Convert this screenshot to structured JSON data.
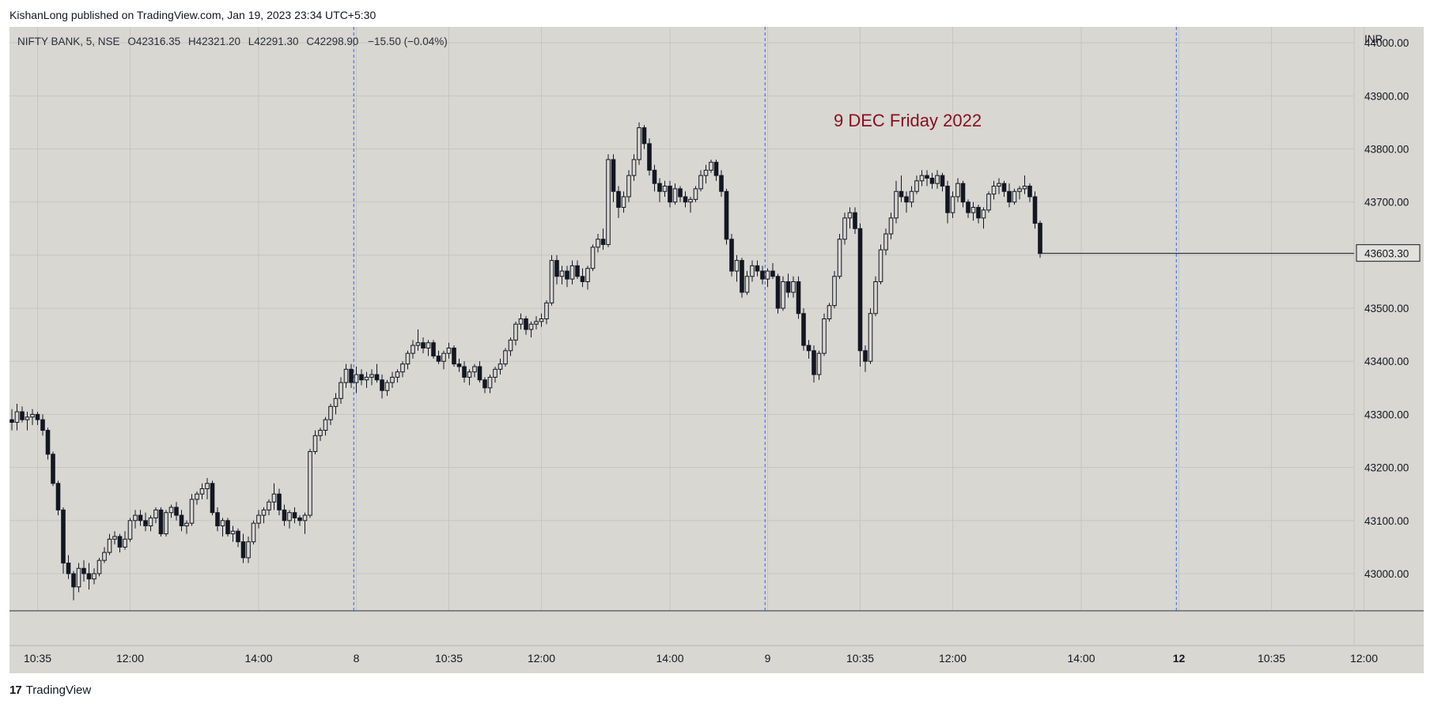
{
  "attribution": "KishanLong published on TradingView.com, Jan 19, 2023 23:34 UTC+5:30",
  "legend": {
    "symbol": "NIFTY BANK, 5, NSE",
    "open_label": "O",
    "open": "42316.35",
    "high_label": "H",
    "high": "42321.20",
    "low_label": "L",
    "low": "42291.30",
    "close_label": "C",
    "close": "42298.90",
    "change": "−15.50 (−0.04%)"
  },
  "currency": "INR",
  "annotation": "9 DEC Friday 2022",
  "footer": {
    "logo_mark": "17",
    "logo_text": "TradingView"
  },
  "colors": {
    "background": "#d8d7d2",
    "candle": "#131722",
    "annotation": "#880e1f",
    "session_line": "#2962ff"
  },
  "chart_data": {
    "type": "candlestick",
    "symbol": "NIFTY BANK",
    "interval": "5",
    "exchange": "NSE",
    "currency": "INR",
    "ylim": [
      42930,
      44030
    ],
    "y_ticks": [
      43000,
      43100,
      43200,
      43300,
      43400,
      43500,
      43600,
      43700,
      43800,
      43900,
      44000
    ],
    "y_tick_labels": [
      "43000.00",
      "43100.00",
      "43200.00",
      "43300.00",
      "43400.00",
      "43500.00",
      "43600.00",
      "43700.00",
      "43800.00",
      "43900.00",
      "44000.00"
    ],
    "last_price_label": "43603.30",
    "last_price": 43603.3,
    "x_ticks": [
      {
        "bar": 5,
        "label": "10:35",
        "bold": false
      },
      {
        "bar": 23,
        "label": "12:00",
        "bold": false
      },
      {
        "bar": 48,
        "label": "14:00",
        "bold": false
      },
      {
        "bar": 67,
        "label": "8",
        "bold": false
      },
      {
        "bar": 85,
        "label": "10:35",
        "bold": false
      },
      {
        "bar": 103,
        "label": "12:00",
        "bold": false
      },
      {
        "bar": 128,
        "label": "14:00",
        "bold": false
      },
      {
        "bar": 147,
        "label": "9",
        "bold": false
      },
      {
        "bar": 165,
        "label": "10:35",
        "bold": false
      },
      {
        "bar": 183,
        "label": "12:00",
        "bold": false
      },
      {
        "bar": 208,
        "label": "14:00",
        "bold": false
      },
      {
        "bar": 227,
        "label": "12",
        "bold": true
      },
      {
        "bar": 245,
        "label": "10:35",
        "bold": false
      },
      {
        "bar": 263,
        "label": "12:00",
        "bold": false
      }
    ],
    "session_breaks": [
      66.5,
      146.5,
      226.5
    ],
    "grid": true,
    "candles": [
      [
        43290,
        43310,
        43270,
        43285
      ],
      [
        43285,
        43320,
        43270,
        43305
      ],
      [
        43305,
        43315,
        43285,
        43290
      ],
      [
        43290,
        43305,
        43270,
        43295
      ],
      [
        43295,
        43310,
        43280,
        43300
      ],
      [
        43300,
        43305,
        43280,
        43290
      ],
      [
        43290,
        43300,
        43260,
        43270
      ],
      [
        43270,
        43275,
        43215,
        43225
      ],
      [
        43225,
        43230,
        43165,
        43170
      ],
      [
        43170,
        43175,
        43110,
        43120
      ],
      [
        43120,
        43125,
        43000,
        43020
      ],
      [
        43020,
        43035,
        42990,
        43000
      ],
      [
        43000,
        43005,
        42950,
        42975
      ],
      [
        42975,
        43020,
        42965,
        43010
      ],
      [
        43010,
        43025,
        42985,
        43000
      ],
      [
        43000,
        43020,
        42970,
        42990
      ],
      [
        42990,
        43010,
        42980,
        43000
      ],
      [
        43000,
        43030,
        42995,
        43025
      ],
      [
        43025,
        43050,
        43020,
        43040
      ],
      [
        43040,
        43075,
        43035,
        43065
      ],
      [
        43065,
        43080,
        43055,
        43070
      ],
      [
        43070,
        43075,
        43040,
        43050
      ],
      [
        43050,
        43080,
        43045,
        43065
      ],
      [
        43065,
        43105,
        43060,
        43100
      ],
      [
        43100,
        43120,
        43085,
        43110
      ],
      [
        43110,
        43120,
        43090,
        43100
      ],
      [
        43100,
        43115,
        43080,
        43090
      ],
      [
        43090,
        43110,
        43080,
        43105
      ],
      [
        43105,
        43125,
        43095,
        43120
      ],
      [
        43120,
        43125,
        43070,
        43075
      ],
      [
        43075,
        43120,
        43070,
        43115
      ],
      [
        43115,
        43130,
        43105,
        43125
      ],
      [
        43125,
        43135,
        43100,
        43110
      ],
      [
        43110,
        43120,
        43080,
        43090
      ],
      [
        43090,
        43100,
        43075,
        43095
      ],
      [
        43095,
        43150,
        43090,
        43140
      ],
      [
        43140,
        43155,
        43130,
        43150
      ],
      [
        43150,
        43170,
        43140,
        43160
      ],
      [
        43160,
        43180,
        43140,
        43170
      ],
      [
        43170,
        43175,
        43110,
        43115
      ],
      [
        43115,
        43125,
        43080,
        43090
      ],
      [
        43090,
        43105,
        43070,
        43100
      ],
      [
        43100,
        43105,
        43070,
        43075
      ],
      [
        43075,
        43090,
        43060,
        43080
      ],
      [
        43080,
        43085,
        43050,
        43060
      ],
      [
        43060,
        43075,
        43020,
        43030
      ],
      [
        43030,
        43070,
        43020,
        43060
      ],
      [
        43060,
        43100,
        43055,
        43095
      ],
      [
        43095,
        43120,
        43085,
        43110
      ],
      [
        43110,
        43125,
        43095,
        43120
      ],
      [
        43120,
        43140,
        43110,
        43135
      ],
      [
        43135,
        43170,
        43120,
        43150
      ],
      [
        43150,
        43160,
        43110,
        43120
      ],
      [
        43120,
        43130,
        43090,
        43100
      ],
      [
        43100,
        43120,
        43085,
        43115
      ],
      [
        43115,
        43125,
        43095,
        43105
      ],
      [
        43105,
        43110,
        43090,
        43100
      ],
      [
        43100,
        43115,
        43075,
        43110
      ],
      [
        43110,
        43235,
        43105,
        43230
      ],
      [
        43230,
        43270,
        43225,
        43260
      ],
      [
        43260,
        43275,
        43250,
        43270
      ],
      [
        43270,
        43295,
        43260,
        43290
      ],
      [
        43290,
        43320,
        43280,
        43315
      ],
      [
        43315,
        43340,
        43300,
        43330
      ],
      [
        43330,
        43370,
        43320,
        43360
      ],
      [
        43360,
        43395,
        43350,
        43385
      ],
      [
        43385,
        43395,
        43350,
        43360
      ],
      [
        43360,
        43390,
        43340,
        43375
      ],
      [
        43375,
        43385,
        43355,
        43365
      ],
      [
        43365,
        43380,
        43350,
        43370
      ],
      [
        43370,
        43385,
        43355,
        43375
      ],
      [
        43375,
        43395,
        43360,
        43365
      ],
      [
        43365,
        43375,
        43330,
        43345
      ],
      [
        43345,
        43365,
        43335,
        43360
      ],
      [
        43360,
        43380,
        43350,
        43370
      ],
      [
        43370,
        43385,
        43360,
        43380
      ],
      [
        43380,
        43400,
        43370,
        43395
      ],
      [
        43395,
        43420,
        43385,
        43415
      ],
      [
        43415,
        43440,
        43405,
        43430
      ],
      [
        43430,
        43460,
        43420,
        43435
      ],
      [
        43435,
        43445,
        43415,
        43425
      ],
      [
        43425,
        43440,
        43410,
        43435
      ],
      [
        43435,
        43440,
        43405,
        43410
      ],
      [
        43410,
        43420,
        43395,
        43400
      ],
      [
        43400,
        43420,
        43385,
        43415
      ],
      [
        43415,
        43435,
        43405,
        43425
      ],
      [
        43425,
        43430,
        43390,
        43395
      ],
      [
        43395,
        43405,
        43380,
        43390
      ],
      [
        43390,
        43400,
        43360,
        43370
      ],
      [
        43370,
        43385,
        43355,
        43380
      ],
      [
        43380,
        43395,
        43370,
        43390
      ],
      [
        43390,
        43400,
        43360,
        43365
      ],
      [
        43365,
        43370,
        43340,
        43350
      ],
      [
        43350,
        43375,
        43340,
        43370
      ],
      [
        43370,
        43390,
        43360,
        43385
      ],
      [
        43385,
        43405,
        43375,
        43395
      ],
      [
        43395,
        43425,
        43390,
        43420
      ],
      [
        43420,
        43445,
        43410,
        43440
      ],
      [
        43440,
        43475,
        43430,
        43470
      ],
      [
        43470,
        43490,
        43460,
        43480
      ],
      [
        43480,
        43485,
        43450,
        43460
      ],
      [
        43460,
        43475,
        43445,
        43470
      ],
      [
        43470,
        43485,
        43460,
        43475
      ],
      [
        43475,
        43490,
        43465,
        43480
      ],
      [
        43480,
        43515,
        43470,
        43510
      ],
      [
        43510,
        43600,
        43505,
        43590
      ],
      [
        43590,
        43600,
        43545,
        43560
      ],
      [
        43560,
        43580,
        43545,
        43570
      ],
      [
        43570,
        43580,
        43540,
        43555
      ],
      [
        43555,
        43590,
        43545,
        43580
      ],
      [
        43580,
        43590,
        43555,
        43560
      ],
      [
        43560,
        43575,
        43540,
        43550
      ],
      [
        43550,
        43580,
        43535,
        43575
      ],
      [
        43575,
        43620,
        43570,
        43615
      ],
      [
        43615,
        43640,
        43605,
        43630
      ],
      [
        43630,
        43650,
        43610,
        43620
      ],
      [
        43620,
        43790,
        43615,
        43780
      ],
      [
        43780,
        43790,
        43700,
        43720
      ],
      [
        43720,
        43730,
        43670,
        43690
      ],
      [
        43690,
        43720,
        43680,
        43710
      ],
      [
        43710,
        43760,
        43700,
        43750
      ],
      [
        43750,
        43790,
        43740,
        43780
      ],
      [
        43780,
        43850,
        43770,
        43840
      ],
      [
        43840,
        43845,
        43800,
        43810
      ],
      [
        43810,
        43820,
        43750,
        43760
      ],
      [
        43760,
        43770,
        43720,
        43735
      ],
      [
        43735,
        43745,
        43700,
        43720
      ],
      [
        43720,
        43740,
        43710,
        43730
      ],
      [
        43730,
        43740,
        43690,
        43700
      ],
      [
        43700,
        43735,
        43695,
        43725
      ],
      [
        43725,
        43730,
        43700,
        43710
      ],
      [
        43710,
        43720,
        43690,
        43700
      ],
      [
        43700,
        43710,
        43680,
        43705
      ],
      [
        43705,
        43730,
        43700,
        43725
      ],
      [
        43725,
        43760,
        43720,
        43750
      ],
      [
        43750,
        43770,
        43735,
        43760
      ],
      [
        43760,
        43780,
        43755,
        43775
      ],
      [
        43775,
        43780,
        43740,
        43750
      ],
      [
        43750,
        43760,
        43710,
        43720
      ],
      [
        43720,
        43725,
        43620,
        43630
      ],
      [
        43630,
        43640,
        43560,
        43570
      ],
      [
        43570,
        43600,
        43550,
        43590
      ],
      [
        43590,
        43595,
        43520,
        43530
      ],
      [
        43530,
        43570,
        43525,
        43560
      ],
      [
        43560,
        43590,
        43550,
        43580
      ],
      [
        43580,
        43590,
        43560,
        43570
      ],
      [
        43570,
        43580,
        43545,
        43555
      ],
      [
        43555,
        43575,
        43540,
        43570
      ],
      [
        43570,
        43585,
        43555,
        43560
      ],
      [
        43560,
        43565,
        43490,
        43500
      ],
      [
        43500,
        43560,
        43495,
        43550
      ],
      [
        43550,
        43565,
        43520,
        43530
      ],
      [
        43530,
        43560,
        43520,
        43550
      ],
      [
        43550,
        43560,
        43480,
        43490
      ],
      [
        43490,
        43500,
        43420,
        43430
      ],
      [
        43430,
        43440,
        43405,
        43420
      ],
      [
        43420,
        43430,
        43360,
        43375
      ],
      [
        43375,
        43420,
        43365,
        43415
      ],
      [
        43415,
        43490,
        43410,
        43480
      ],
      [
        43480,
        43510,
        43475,
        43505
      ],
      [
        43505,
        43570,
        43500,
        43560
      ],
      [
        43560,
        43640,
        43555,
        43630
      ],
      [
        43630,
        43680,
        43620,
        43670
      ],
      [
        43670,
        43690,
        43650,
        43680
      ],
      [
        43680,
        43690,
        43640,
        43650
      ],
      [
        43650,
        43660,
        43390,
        43420
      ],
      [
        43420,
        43430,
        43380,
        43400
      ],
      [
        43400,
        43500,
        43395,
        43490
      ],
      [
        43490,
        43560,
        43485,
        43550
      ],
      [
        43550,
        43620,
        43545,
        43610
      ],
      [
        43610,
        43650,
        43600,
        43640
      ],
      [
        43640,
        43680,
        43630,
        43670
      ],
      [
        43670,
        43740,
        43660,
        43720
      ],
      [
        43720,
        43750,
        43700,
        43710
      ],
      [
        43710,
        43720,
        43680,
        43700
      ],
      [
        43700,
        43730,
        43690,
        43720
      ],
      [
        43720,
        43750,
        43715,
        43740
      ],
      [
        43740,
        43760,
        43730,
        43750
      ],
      [
        43750,
        43760,
        43730,
        43745
      ],
      [
        43745,
        43755,
        43725,
        43735
      ],
      [
        43735,
        43760,
        43725,
        43750
      ],
      [
        43750,
        43755,
        43720,
        43730
      ],
      [
        43730,
        43740,
        43660,
        43680
      ],
      [
        43680,
        43720,
        43670,
        43710
      ],
      [
        43710,
        43745,
        43700,
        43735
      ],
      [
        43735,
        43740,
        43690,
        43700
      ],
      [
        43700,
        43705,
        43670,
        43680
      ],
      [
        43680,
        43700,
        43665,
        43690
      ],
      [
        43690,
        43695,
        43660,
        43670
      ],
      [
        43670,
        43690,
        43650,
        43685
      ],
      [
        43685,
        43720,
        43680,
        43715
      ],
      [
        43715,
        43740,
        43705,
        43730
      ],
      [
        43730,
        43745,
        43715,
        43735
      ],
      [
        43735,
        43740,
        43710,
        43720
      ],
      [
        43720,
        43735,
        43690,
        43700
      ],
      [
        43700,
        43725,
        43695,
        43720
      ],
      [
        43720,
        43730,
        43705,
        43725
      ],
      [
        43725,
        43750,
        43715,
        43730
      ],
      [
        43730,
        43735,
        43700,
        43710
      ],
      [
        43710,
        43720,
        43650,
        43660
      ],
      [
        43660,
        43665,
        43595,
        43603.3
      ]
    ]
  }
}
